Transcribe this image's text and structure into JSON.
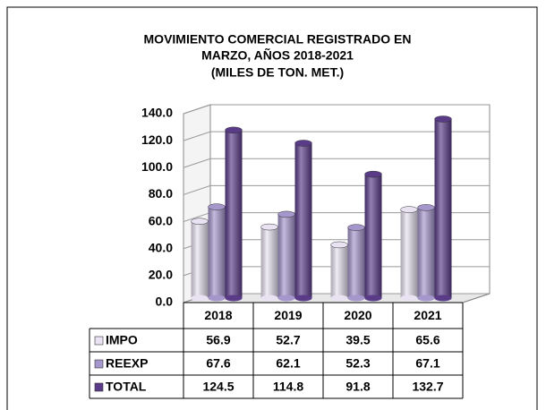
{
  "chart_data": {
    "type": "bar",
    "title": [
      "MOVIMIENTO COMERCIAL REGISTRADO  EN",
      "MARZO, AÑOS 2018-2021",
      "(MILES DE TON. MET.)"
    ],
    "categories": [
      "2018",
      "2019",
      "2020",
      "2021"
    ],
    "series": [
      {
        "name": "IMPO",
        "color": "#e8e2f2",
        "values": [
          56.9,
          52.7,
          39.5,
          65.6
        ]
      },
      {
        "name": "REEXP",
        "color": "#a596cc",
        "values": [
          67.6,
          62.1,
          52.3,
          67.1
        ]
      },
      {
        "name": "TOTAL",
        "color": "#5a3b88",
        "values": [
          124.5,
          114.8,
          91.8,
          132.7
        ]
      }
    ],
    "ylim": [
      0,
      140
    ],
    "yticks": [
      {
        "value": 0,
        "label": "0.0"
      },
      {
        "value": 20,
        "label": "20.0"
      },
      {
        "value": 40,
        "label": "40.0"
      },
      {
        "value": 60,
        "label": "60.0"
      },
      {
        "value": 80,
        "label": "80.0"
      },
      {
        "value": 100,
        "label": "100.0"
      },
      {
        "value": 120,
        "label": "120.0"
      },
      {
        "value": 140,
        "label": "140.0"
      }
    ],
    "grid": true
  }
}
